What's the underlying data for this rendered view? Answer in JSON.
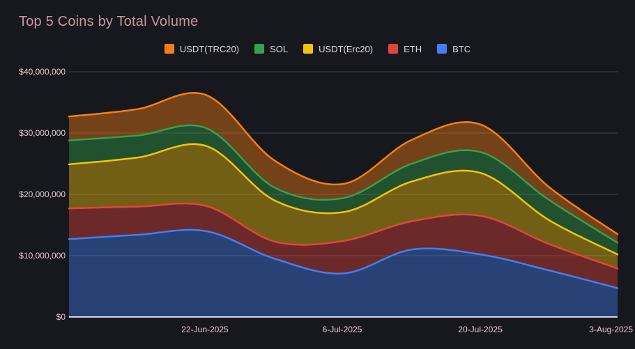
{
  "colors": {
    "background": "#16181d",
    "grid": "#3f434b",
    "baseline": "#ccd2dd",
    "title_text": "#c6979e",
    "axis_text": "#e6c8cc",
    "legend_text": "#e4d5d7"
  },
  "chart_data": {
    "type": "area",
    "stacked": true,
    "title": "Top 5 Coins by Total Volume",
    "legend_position": "top",
    "grid": true,
    "x": [
      "8-Jun-2025",
      "15-Jun-2025",
      "22-Jun-2025",
      "29-Jun-2025",
      "6-Jul-2025",
      "13-Jul-2025",
      "20-Jul-2025",
      "27-Jul-2025",
      "3-Aug-2025"
    ],
    "x_ticks": [
      "22-Jun-2025",
      "6-Jul-2025",
      "20-Jul-2025",
      "3-Aug-2025"
    ],
    "y_tick_labels": [
      "$40,000,000",
      "$30,000,000",
      "$20,000,000",
      "$10,000,000",
      "$0"
    ],
    "ylim": [
      0,
      40000000
    ],
    "series": [
      {
        "name": "BTC",
        "color": "#447ef2",
        "values": [
          12700000,
          13400000,
          14000000,
          9500000,
          7100000,
          11000000,
          10200000,
          7600000,
          4700000
        ]
      },
      {
        "name": "ETH",
        "color": "#e2453c",
        "values": [
          5000000,
          4600000,
          4100000,
          2800000,
          5300000,
          4600000,
          6300000,
          4300000,
          3200000
        ]
      },
      {
        "name": "USDT(Erc20)",
        "color": "#f2c40d",
        "values": [
          7200000,
          8000000,
          9800000,
          6700000,
          4700000,
          6500000,
          7000000,
          3900000,
          2300000
        ]
      },
      {
        "name": "SOL",
        "color": "#34a14d",
        "values": [
          3900000,
          3600000,
          2900000,
          2100000,
          2300000,
          2900000,
          3400000,
          3300000,
          1900000
        ]
      },
      {
        "name": "USDT(TRC20)",
        "color": "#f77e14",
        "values": [
          3900000,
          4300000,
          5400000,
          4400000,
          2300000,
          3900000,
          4500000,
          2100000,
          1400000
        ]
      }
    ]
  }
}
